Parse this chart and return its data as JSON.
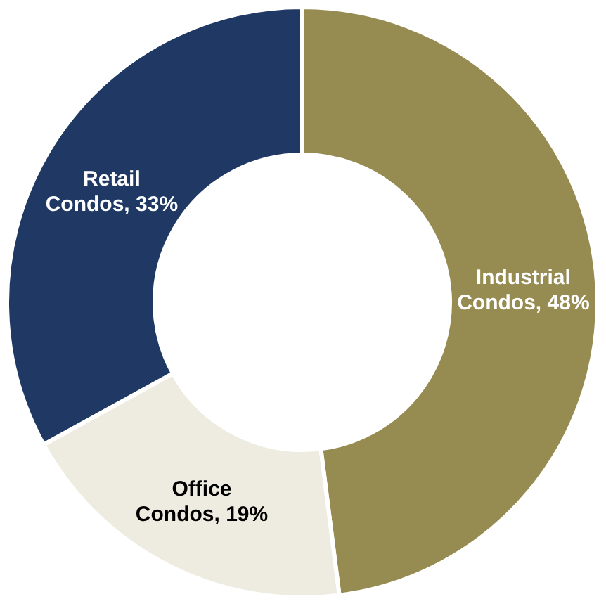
{
  "chart_data": {
    "type": "donut",
    "categories": [
      "Industrial Condos",
      "Office Condos",
      "Retail Condos"
    ],
    "values": [
      48,
      19,
      33
    ],
    "value_labels": [
      "48%",
      "19%",
      "33%"
    ],
    "colors": [
      "#968c52",
      "#eeece1",
      "#1f3864"
    ]
  }
}
